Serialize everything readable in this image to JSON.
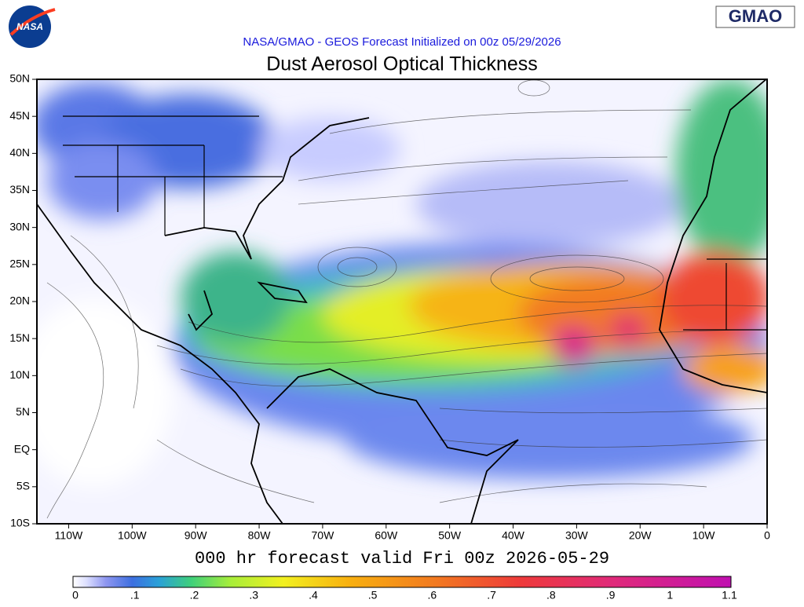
{
  "logos": {
    "left": "NASA",
    "right": "GMAO"
  },
  "subtitle": "NASA/GMAO - GEOS Forecast Initialized on 00z 05/29/2026",
  "title": "Dust Aerosol Optical Thickness",
  "lat_labels": [
    "50N",
    "45N",
    "40N",
    "35N",
    "30N",
    "25N",
    "20N",
    "15N",
    "10N",
    "5N",
    "EQ",
    "5S",
    "10S"
  ],
  "lon_labels": [
    "110W",
    "100W",
    "90W",
    "80W",
    "70W",
    "60W",
    "50W",
    "40W",
    "30W",
    "20W",
    "10W",
    "0"
  ],
  "valid_time": "000 hr forecast valid Fri 00z 2026-05-29",
  "colorbar_ticks": [
    "0",
    ".1",
    ".2",
    ".3",
    ".4",
    ".5",
    ".6",
    ".7",
    ".8",
    ".9",
    "1",
    "1.1"
  ]
}
